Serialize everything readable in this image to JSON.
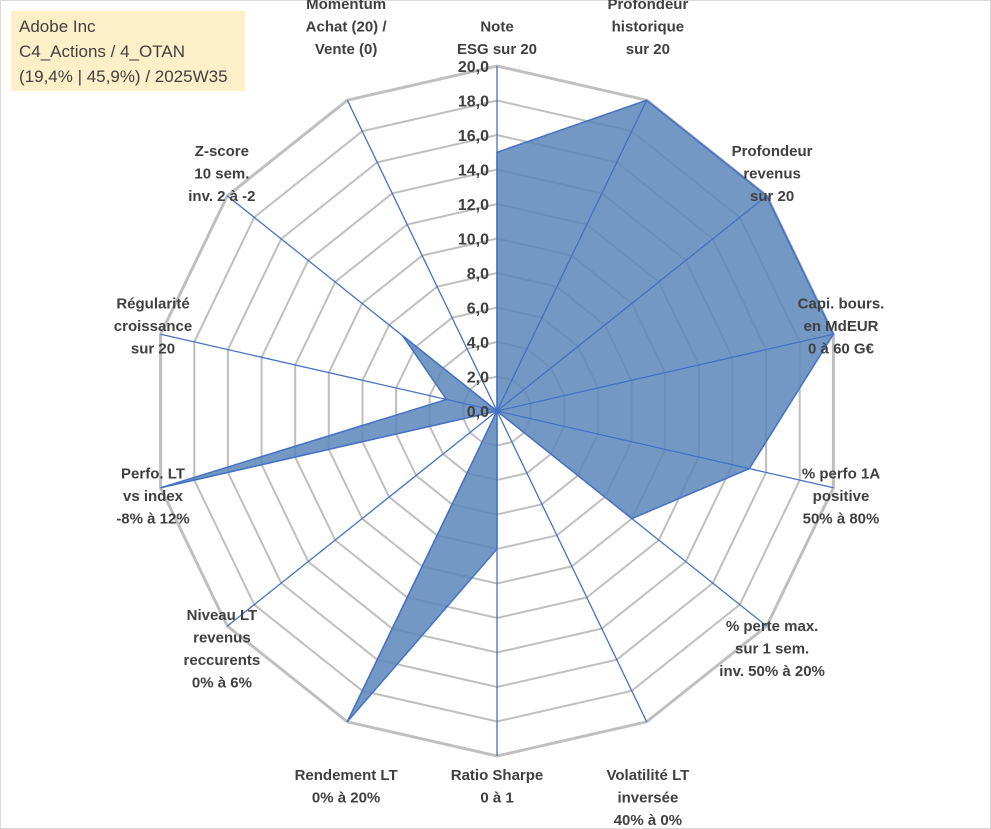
{
  "info": {
    "line1": "Adobe Inc",
    "line2": "C4_Actions / 4_OTAN",
    "line3": "(19,4% | 45,9%) / 2025W35"
  },
  "chart_data": {
    "type": "radar",
    "title": "",
    "rmin": 0,
    "rmax": 20,
    "tick_step": 2,
    "ticks": [
      "0,0",
      "2,0",
      "4,0",
      "6,0",
      "8,0",
      "10,0",
      "12,0",
      "14,0",
      "16,0",
      "18,0",
      "20,0"
    ],
    "axes": [
      {
        "label": [
          "Note",
          "ESG sur 20"
        ],
        "value": 15
      },
      {
        "label": [
          "Profondeur",
          "historique",
          "sur 20"
        ],
        "value": 20
      },
      {
        "label": [
          "Profondeur",
          "revenus",
          "sur 20"
        ],
        "value": 20
      },
      {
        "label": [
          "Capi. bours.",
          "en MdEUR",
          "0 à 60 G€"
        ],
        "value": 20
      },
      {
        "label": [
          "% perfo 1A",
          "positive",
          "50% à 80%"
        ],
        "value": 15
      },
      {
        "label": [
          "% perte max.",
          "sur 1 sem.",
          "inv. 50% à 20%"
        ],
        "value": 10
      },
      {
        "label": [
          "Volatilité LT",
          "inversée",
          "40% à 0%"
        ],
        "value": 0
      },
      {
        "label": [
          "Ratio Sharpe",
          "0 à 1"
        ],
        "value": 8
      },
      {
        "label": [
          "Rendement LT",
          "0% à 20%"
        ],
        "value": 20
      },
      {
        "label": [
          "Niveau LT",
          "revenus",
          "reccurents",
          "0% à 6%"
        ],
        "value": 0
      },
      {
        "label": [
          "Perfo. LT",
          "vs index",
          "-8% à 12%"
        ],
        "value": 20
      },
      {
        "label": [
          "Régularité",
          "croissance",
          "sur 20"
        ],
        "value": 3
      },
      {
        "label": [
          "Z-score",
          "10 sem.",
          "inv. 2 à -2"
        ],
        "value": 7
      },
      {
        "label": [
          "Momentum",
          "Achat (20) /",
          "Vente (0)"
        ],
        "value": 0
      }
    ],
    "series": [
      {
        "fill": "#5b86b8",
        "stroke": "#4472c4"
      }
    ],
    "grid_color": "#bfbfbf",
    "spoke_color": "#4472c4"
  }
}
